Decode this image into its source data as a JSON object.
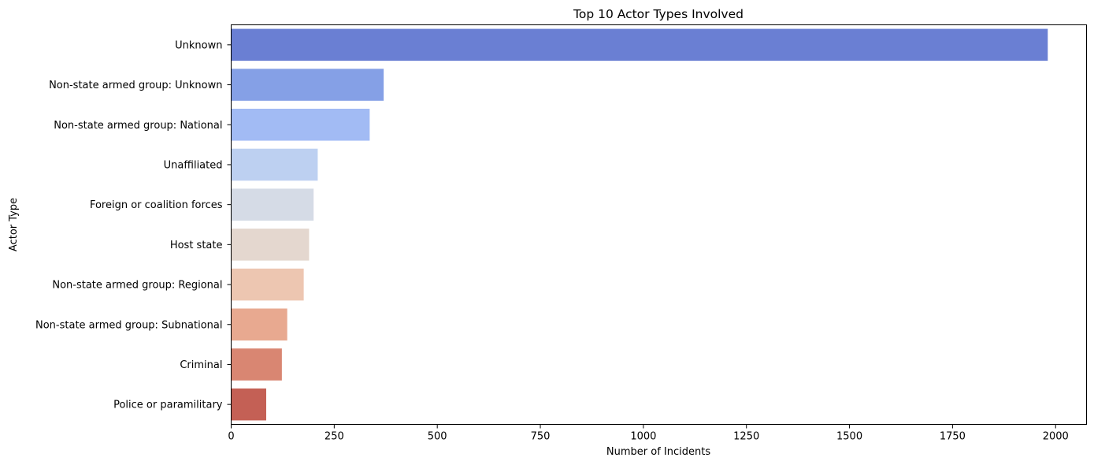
{
  "chart_data": {
    "type": "bar",
    "orientation": "horizontal",
    "title": "Top 10 Actor Types Involved",
    "xlabel": "Number of Incidents",
    "ylabel": "Actor Type",
    "categories": [
      "Unknown",
      "Non-state armed group: Unknown",
      "Non-state armed group: National",
      "Unaffiliated",
      "Foreign or coalition forces",
      "Host state",
      "Non-state armed group: Regional",
      "Non-state armed group: Subnational",
      "Criminal",
      "Police or paramilitary"
    ],
    "values": [
      1981,
      370,
      336,
      210,
      200,
      189,
      176,
      136,
      123,
      85
    ],
    "colors": [
      "#6a7fd3",
      "#85a0e6",
      "#a2bbf4",
      "#bdd0f1",
      "#d5dbe6",
      "#e4d7cf",
      "#edc6b1",
      "#e8a990",
      "#d98672",
      "#c46055"
    ],
    "xlim": [
      0,
      2075
    ],
    "xticks": [
      0,
      250,
      500,
      750,
      1000,
      1250,
      1500,
      1750,
      2000
    ],
    "grid": false,
    "legend": "none"
  }
}
